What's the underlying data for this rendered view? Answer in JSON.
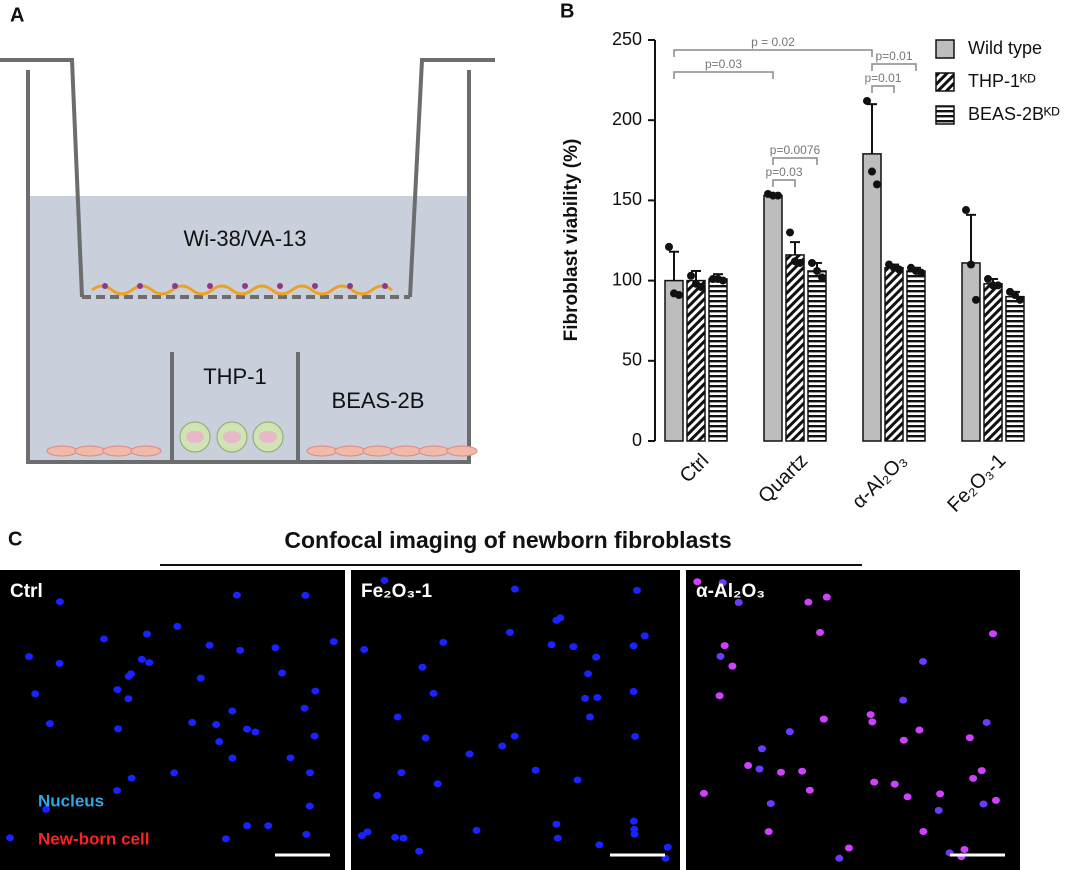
{
  "panel_a": {
    "label": "A",
    "upper_cells": "Wi-38/VA-13",
    "left_cells": "THP-1",
    "right_cells": "BEAS-2B"
  },
  "chart_data": {
    "panel_label": "B",
    "type": "bar",
    "ylabel": "Fibroblast viability (%)",
    "categories": [
      "Ctrl",
      "Quartz",
      "α-Al₂O₃",
      "Fe₂O₃-1"
    ],
    "ylim": [
      0,
      250
    ],
    "yticks": [
      0,
      50,
      100,
      150,
      200,
      250
    ],
    "series": [
      {
        "name": "Wild type",
        "color": "#bdbdbd",
        "pattern": "solid",
        "values": [
          100,
          153,
          179,
          111
        ],
        "errors": [
          18,
          1,
          31,
          30
        ],
        "points": [
          [
            121,
            92,
            91
          ],
          [
            154,
            153,
            153
          ],
          [
            212,
            168,
            160
          ],
          [
            144,
            110,
            88
          ]
        ]
      },
      {
        "name": "THP-1ᴷᴰ",
        "color": "#111111",
        "pattern": "diagonal",
        "values": [
          100,
          116,
          108,
          98
        ],
        "errors": [
          6,
          8,
          2,
          3
        ],
        "points": [
          [
            103,
            98,
            96
          ],
          [
            130,
            112,
            111
          ],
          [
            110,
            108,
            107
          ],
          [
            101,
            97,
            97
          ]
        ]
      },
      {
        "name": "BEAS-2Bᴷᴰ",
        "color": "#111111",
        "pattern": "horizontal",
        "values": [
          101,
          106,
          106,
          90
        ],
        "errors": [
          3,
          5,
          2,
          3
        ],
        "points": [
          [
            101,
            101,
            100
          ],
          [
            111,
            106,
            102
          ],
          [
            108,
            106,
            105
          ],
          [
            93,
            91,
            88
          ]
        ]
      }
    ],
    "annotations": [
      "p = 0.02",
      "p=0.03",
      "p=0.0076",
      "p=0.03",
      "p=0.01",
      "p=0.01"
    ]
  },
  "panel_c": {
    "label": "C",
    "title": "Confocal imaging of newborn fibroblasts",
    "images": [
      "Ctrl",
      "Fe₂O₃-1",
      "α-Al₂O₃"
    ],
    "legend": [
      "Nucleus",
      "New-born cell"
    ]
  }
}
